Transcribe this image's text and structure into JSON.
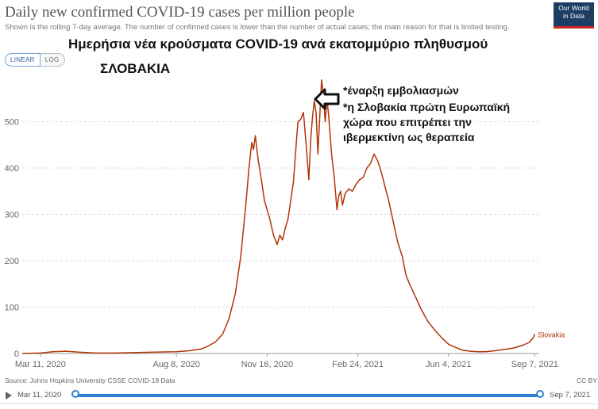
{
  "header": {
    "title": "Daily new confirmed COVID-19 cases per million people",
    "subtitle": "Shown is the rolling 7-day average. The number of confirmed cases is lower than the number of actual cases; the main reason for that is limited testing.",
    "logo_lines": [
      "Our World",
      "in Data"
    ]
  },
  "scale_toggle": {
    "linear": "LINEAR",
    "log": "LOG"
  },
  "overlay": {
    "title": "Ημερήσια νέα κρούσματα COVID-19 ανά εκατομμύριο πληθυσμού",
    "country": "ΣΛΟΒΑΚΙΑ",
    "annotations": [
      "*έναρξη εμβολιασμών",
      "*η Σλοβακία πρώτη Ευρωπαϊκή",
      "χώρα που επιτρέπει την",
      "ιβερμεκτίνη ως θεραπεία"
    ]
  },
  "chart_data": {
    "type": "line",
    "title": "Daily new confirmed COVID-19 cases per million people",
    "xlabel": "",
    "ylabel": "",
    "ylim": [
      0,
      600
    ],
    "xlim": [
      "2020-02-20",
      "2021-09-12"
    ],
    "y_ticks": [
      0,
      100,
      200,
      300,
      400,
      500
    ],
    "x_ticks": [
      {
        "date": "2020-03-11",
        "label": "Mar 11, 2020"
      },
      {
        "date": "2020-08-08",
        "label": "Aug 8, 2020"
      },
      {
        "date": "2020-11-16",
        "label": "Nov 16, 2020"
      },
      {
        "date": "2021-02-24",
        "label": "Feb 24, 2021"
      },
      {
        "date": "2021-06-04",
        "label": "Jun 4, 2021"
      },
      {
        "date": "2021-09-07",
        "label": "Sep 7, 2021"
      }
    ],
    "grid": true,
    "series": [
      {
        "name": "Slovakia",
        "color": "#b13507",
        "points": [
          [
            "2020-02-20",
            0
          ],
          [
            "2020-03-11",
            1
          ],
          [
            "2020-03-25",
            4
          ],
          [
            "2020-04-08",
            5
          ],
          [
            "2020-04-22",
            3
          ],
          [
            "2020-05-10",
            1
          ],
          [
            "2020-06-01",
            1
          ],
          [
            "2020-06-25",
            2
          ],
          [
            "2020-07-15",
            3
          ],
          [
            "2020-08-08",
            4
          ],
          [
            "2020-08-22",
            6
          ],
          [
            "2020-09-05",
            10
          ],
          [
            "2020-09-12",
            16
          ],
          [
            "2020-09-20",
            25
          ],
          [
            "2020-09-28",
            42
          ],
          [
            "2020-10-05",
            75
          ],
          [
            "2020-10-12",
            130
          ],
          [
            "2020-10-18",
            210
          ],
          [
            "2020-10-23",
            310
          ],
          [
            "2020-10-27",
            400
          ],
          [
            "2020-10-30",
            455
          ],
          [
            "2020-11-01",
            440
          ],
          [
            "2020-11-03",
            470
          ],
          [
            "2020-11-06",
            420
          ],
          [
            "2020-11-10",
            370
          ],
          [
            "2020-11-13",
            330
          ],
          [
            "2020-11-16",
            310
          ],
          [
            "2020-11-19",
            290
          ],
          [
            "2020-11-23",
            255
          ],
          [
            "2020-11-27",
            235
          ],
          [
            "2020-11-30",
            255
          ],
          [
            "2020-12-03",
            245
          ],
          [
            "2020-12-06",
            270
          ],
          [
            "2020-12-09",
            290
          ],
          [
            "2020-12-12",
            330
          ],
          [
            "2020-12-15",
            370
          ],
          [
            "2020-12-18",
            450
          ],
          [
            "2020-12-20",
            500
          ],
          [
            "2020-12-23",
            505
          ],
          [
            "2020-12-26",
            520
          ],
          [
            "2020-12-29",
            450
          ],
          [
            "2021-01-01",
            375
          ],
          [
            "2021-01-03",
            460
          ],
          [
            "2021-01-05",
            510
          ],
          [
            "2021-01-07",
            545
          ],
          [
            "2021-01-09",
            520
          ],
          [
            "2021-01-11",
            430
          ],
          [
            "2021-01-13",
            510
          ],
          [
            "2021-01-15",
            590
          ],
          [
            "2021-01-17",
            560
          ],
          [
            "2021-01-19",
            500
          ],
          [
            "2021-01-21",
            550
          ],
          [
            "2021-01-23",
            510
          ],
          [
            "2021-01-26",
            430
          ],
          [
            "2021-01-29",
            380
          ],
          [
            "2021-02-01",
            310
          ],
          [
            "2021-02-03",
            340
          ],
          [
            "2021-02-05",
            350
          ],
          [
            "2021-02-07",
            320
          ],
          [
            "2021-02-10",
            345
          ],
          [
            "2021-02-14",
            355
          ],
          [
            "2021-02-18",
            350
          ],
          [
            "2021-02-22",
            365
          ],
          [
            "2021-02-26",
            375
          ],
          [
            "2021-03-02",
            380
          ],
          [
            "2021-03-06",
            400
          ],
          [
            "2021-03-10",
            410
          ],
          [
            "2021-03-14",
            430
          ],
          [
            "2021-03-18",
            415
          ],
          [
            "2021-03-22",
            390
          ],
          [
            "2021-03-26",
            360
          ],
          [
            "2021-03-30",
            330
          ],
          [
            "2021-04-04",
            285
          ],
          [
            "2021-04-09",
            240
          ],
          [
            "2021-04-14",
            210
          ],
          [
            "2021-04-18",
            170
          ],
          [
            "2021-04-22",
            150
          ],
          [
            "2021-04-28",
            125
          ],
          [
            "2021-05-05",
            95
          ],
          [
            "2021-05-12",
            70
          ],
          [
            "2021-05-20",
            50
          ],
          [
            "2021-05-28",
            33
          ],
          [
            "2021-06-04",
            20
          ],
          [
            "2021-06-12",
            13
          ],
          [
            "2021-06-20",
            7
          ],
          [
            "2021-06-28",
            5
          ],
          [
            "2021-07-06",
            4
          ],
          [
            "2021-07-15",
            4
          ],
          [
            "2021-07-25",
            6
          ],
          [
            "2021-08-05",
            9
          ],
          [
            "2021-08-15",
            12
          ],
          [
            "2021-08-25",
            18
          ],
          [
            "2021-09-01",
            24
          ],
          [
            "2021-09-05",
            33
          ],
          [
            "2021-09-07",
            42
          ]
        ]
      }
    ]
  },
  "footer": {
    "source": "Source: Johns Hopkins University CSSE COVID-19 Data",
    "license": "CC BY"
  },
  "timeline": {
    "start": "Mar 11, 2020",
    "end": "Sep 7, 2021"
  }
}
